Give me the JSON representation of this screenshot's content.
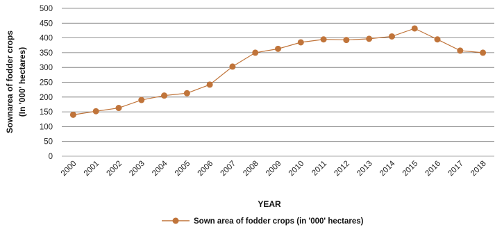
{
  "chart_data": {
    "type": "line",
    "title": "",
    "xlabel": "YEAR",
    "ylabel_line1": "Sownarea of fodder crops",
    "ylabel_line2": "(In '000' hectares)",
    "ylim": [
      0,
      500
    ],
    "yticks": [
      0,
      50,
      100,
      150,
      200,
      250,
      300,
      350,
      400,
      450,
      500
    ],
    "grid": "horizontal",
    "legend_position": "bottom",
    "categories": [
      "2000",
      "2001",
      "2002",
      "2003",
      "2004",
      "2005",
      "2006",
      "2007",
      "2008",
      "2009",
      "2010",
      "2011",
      "2012",
      "2013",
      "2014",
      "2015",
      "2016",
      "2017",
      "2018"
    ],
    "series": [
      {
        "name": "Sown area of fodder crops (in '000' hectares)",
        "color": "#c0743a",
        "values": [
          140,
          152,
          163,
          190,
          205,
          213,
          242,
          303,
          350,
          363,
          385,
          395,
          393,
          397,
          405,
          432,
          395,
          357,
          350
        ]
      }
    ]
  }
}
